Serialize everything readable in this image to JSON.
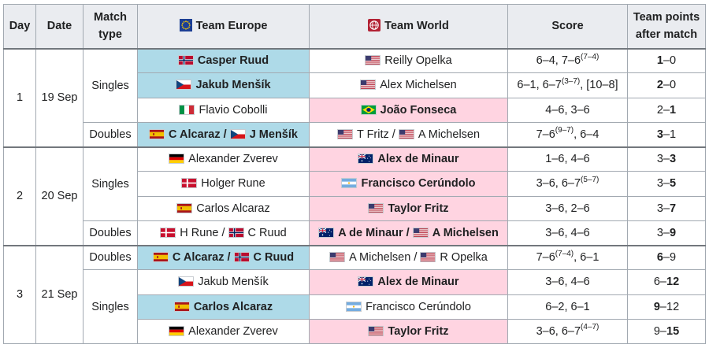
{
  "colors": {
    "europe_win": "#aedae8",
    "world_win": "#ffd4e1",
    "header_bg": "#eaecf0"
  },
  "headers": {
    "day": "Day",
    "date": "Date",
    "match_type": "Match type",
    "team_europe": "Team Europe",
    "team_world": "Team World",
    "score": "Score",
    "team_points": "Team points after match"
  },
  "days": [
    {
      "day": "1",
      "date": "19 Sep"
    },
    {
      "day": "2",
      "date": "20 Sep"
    },
    {
      "day": "3",
      "date": "21 Sep"
    }
  ],
  "match_types": {
    "singles": "Singles",
    "doubles": "Doubles"
  },
  "matches": [
    {
      "europe": [
        {
          "name": "Casper Ruud",
          "flag": "norway"
        }
      ],
      "world": [
        {
          "name": "Reilly Opelka",
          "flag": "usa"
        }
      ],
      "score": "6–4, 7–6",
      "score_sup": "(7–4)",
      "score_tail": "",
      "points_eu": "1",
      "points_w": "0",
      "winner": "europe"
    },
    {
      "europe": [
        {
          "name": "Jakub Menšík",
          "flag": "czechia"
        }
      ],
      "world": [
        {
          "name": "Alex Michelsen",
          "flag": "usa"
        }
      ],
      "score": "6–1, 6–7",
      "score_sup": "(3–7)",
      "score_tail": ", [10–8]",
      "points_eu": "2",
      "points_w": "0",
      "winner": "europe"
    },
    {
      "europe": [
        {
          "name": "Flavio Cobolli",
          "flag": "italy"
        }
      ],
      "world": [
        {
          "name": "João Fonseca",
          "flag": "brazil"
        }
      ],
      "score": "4–6, 3–6",
      "score_sup": "",
      "score_tail": "",
      "points_eu": "2",
      "points_w": "1",
      "winner": "world"
    },
    {
      "europe": [
        {
          "name": "C Alcaraz",
          "flag": "spain"
        },
        {
          "name": "J Menšík",
          "flag": "czechia"
        }
      ],
      "world": [
        {
          "name": "T Fritz",
          "flag": "usa"
        },
        {
          "name": "A Michelsen",
          "flag": "usa"
        }
      ],
      "score": "7–6",
      "score_sup": "(9–7)",
      "score_tail": ", 6–4",
      "points_eu": "3",
      "points_w": "1",
      "winner": "europe"
    },
    {
      "europe": [
        {
          "name": "Alexander Zverev",
          "flag": "germany"
        }
      ],
      "world": [
        {
          "name": "Alex de Minaur",
          "flag": "australia"
        }
      ],
      "score": "1–6, 4–6",
      "score_sup": "",
      "score_tail": "",
      "points_eu": "3",
      "points_w": "3",
      "winner": "world"
    },
    {
      "europe": [
        {
          "name": "Holger Rune",
          "flag": "denmark"
        }
      ],
      "world": [
        {
          "name": "Francisco Cerúndolo",
          "flag": "argentina"
        }
      ],
      "score": "3–6, 6–7",
      "score_sup": "(5–7)",
      "score_tail": "",
      "points_eu": "3",
      "points_w": "5",
      "winner": "world"
    },
    {
      "europe": [
        {
          "name": "Carlos Alcaraz",
          "flag": "spain"
        }
      ],
      "world": [
        {
          "name": "Taylor Fritz",
          "flag": "usa"
        }
      ],
      "score": "3–6, 2–6",
      "score_sup": "",
      "score_tail": "",
      "points_eu": "3",
      "points_w": "7",
      "winner": "world"
    },
    {
      "europe": [
        {
          "name": "H Rune",
          "flag": "denmark"
        },
        {
          "name": "C Ruud",
          "flag": "norway"
        }
      ],
      "world": [
        {
          "name": "A de Minaur",
          "flag": "australia"
        },
        {
          "name": "A Michelsen",
          "flag": "usa"
        }
      ],
      "score": "3–6, 4–6",
      "score_sup": "",
      "score_tail": "",
      "points_eu": "3",
      "points_w": "9",
      "winner": "world"
    },
    {
      "europe": [
        {
          "name": "C Alcaraz",
          "flag": "spain"
        },
        {
          "name": "C Ruud",
          "flag": "norway"
        }
      ],
      "world": [
        {
          "name": "A Michelsen",
          "flag": "usa"
        },
        {
          "name": "R Opelka",
          "flag": "usa"
        }
      ],
      "score": "7–6",
      "score_sup": "(7–4)",
      "score_tail": ", 6–1",
      "points_eu": "6",
      "points_w": "9",
      "winner": "europe"
    },
    {
      "europe": [
        {
          "name": "Jakub Menšík",
          "flag": "czechia"
        }
      ],
      "world": [
        {
          "name": "Alex de Minaur",
          "flag": "australia"
        }
      ],
      "score": "3–6, 4–6",
      "score_sup": "",
      "score_tail": "",
      "points_eu": "6",
      "points_w": "12",
      "winner": "world"
    },
    {
      "europe": [
        {
          "name": "Carlos Alcaraz",
          "flag": "spain"
        }
      ],
      "world": [
        {
          "name": "Francisco Cerúndolo",
          "flag": "argentina"
        }
      ],
      "score": "6–2, 6–1",
      "score_sup": "",
      "score_tail": "",
      "points_eu": "9",
      "points_w": "12",
      "winner": "europe"
    },
    {
      "europe": [
        {
          "name": "Alexander Zverev",
          "flag": "germany"
        }
      ],
      "world": [
        {
          "name": "Taylor Fritz",
          "flag": "usa"
        }
      ],
      "score": "3–6, 6–7",
      "score_sup": "(4–7)",
      "score_tail": "",
      "points_eu": "9",
      "points_w": "15",
      "winner": "world"
    }
  ]
}
